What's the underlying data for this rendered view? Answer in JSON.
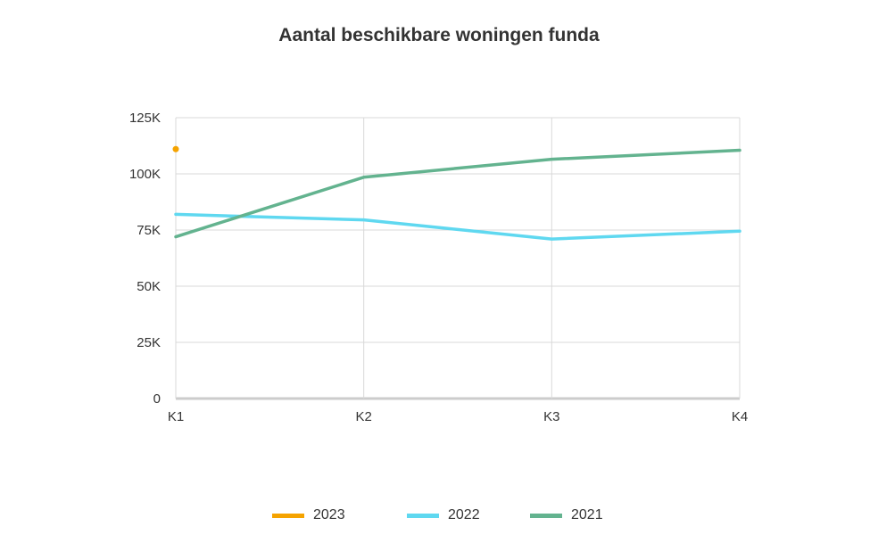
{
  "chart_data": {
    "type": "line",
    "title": "Aantal beschikbare woningen funda",
    "categories": [
      "K1",
      "K2",
      "K3",
      "K4"
    ],
    "y_ticks": [
      "0",
      "25K",
      "50K",
      "75K",
      "100K",
      "125K"
    ],
    "ylim": [
      0,
      125000
    ],
    "grid": true,
    "legend_position": "bottom",
    "series": [
      {
        "name": "2023",
        "color": "#f5a300",
        "values": [
          111000,
          null,
          null,
          null
        ]
      },
      {
        "name": "2022",
        "color": "#5fd8f0",
        "values": [
          82000,
          79500,
          71000,
          74500
        ]
      },
      {
        "name": "2021",
        "color": "#63b38f",
        "values": [
          72000,
          98500,
          106500,
          110500
        ]
      }
    ]
  }
}
